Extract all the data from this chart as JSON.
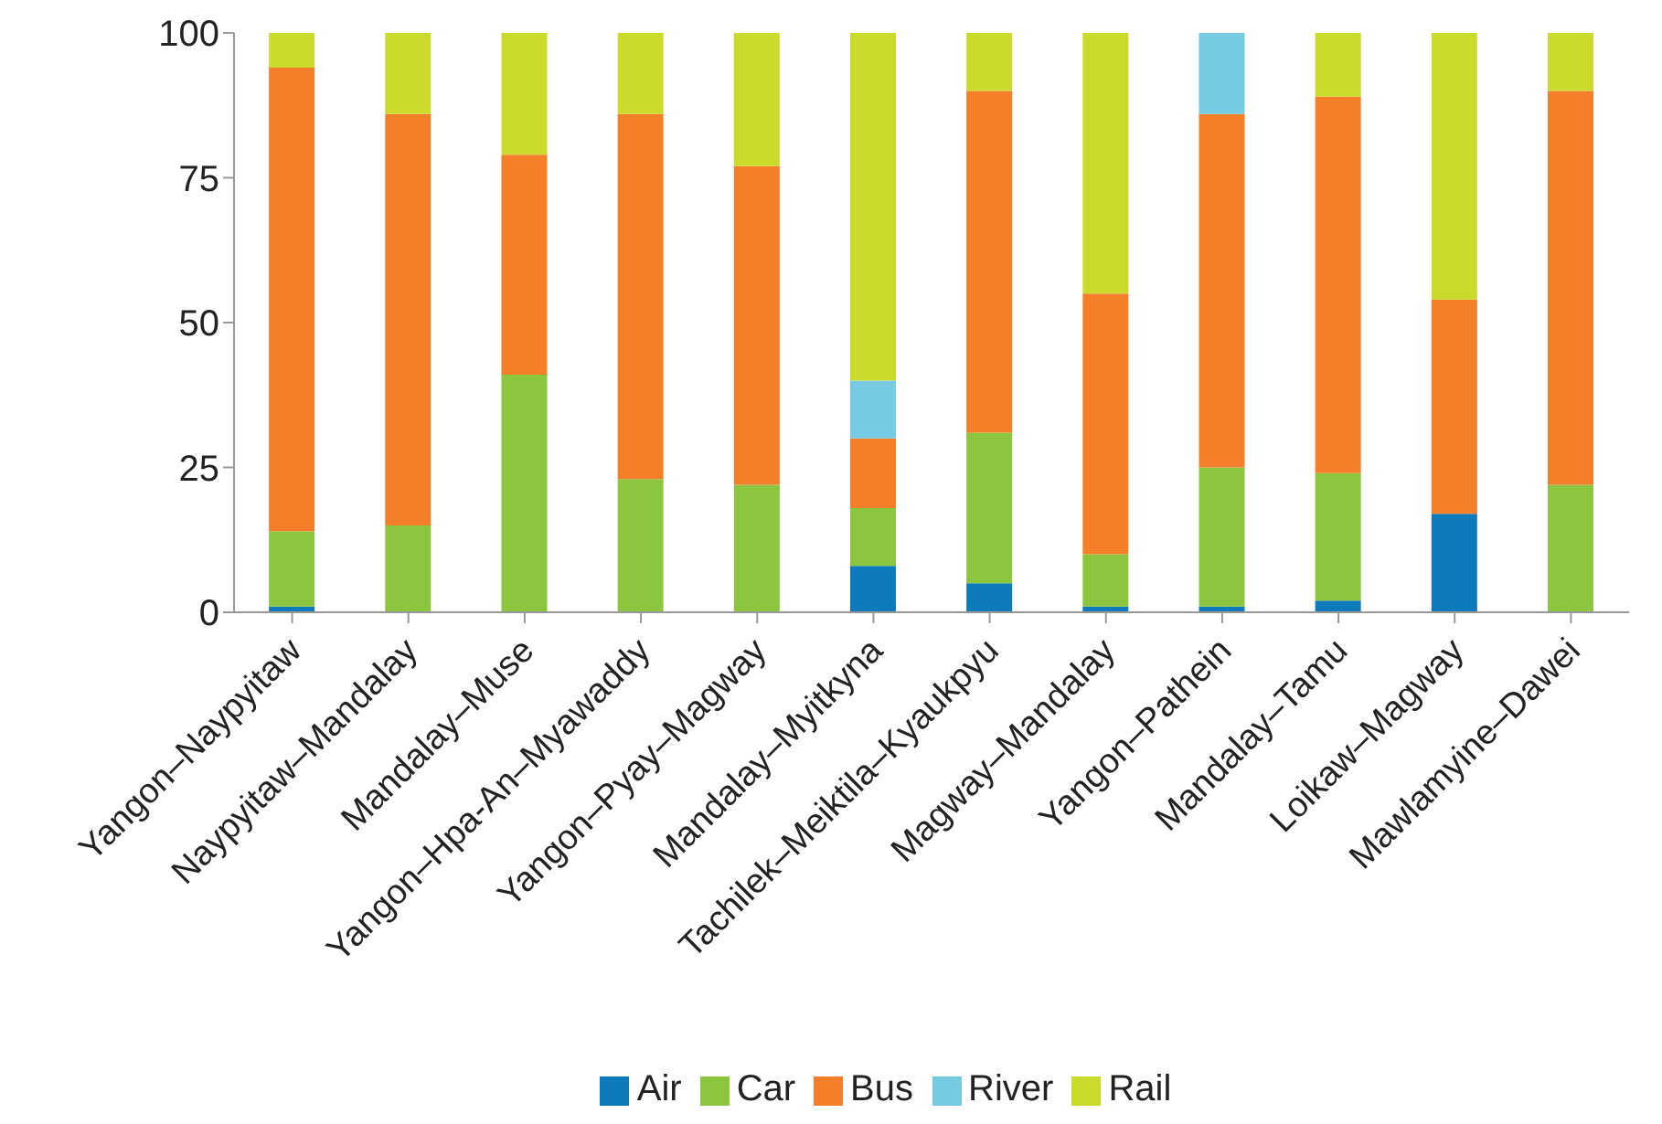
{
  "chart_data": {
    "type": "bar",
    "stacked": true,
    "categories": [
      "Yangon–Naypyitaw",
      "Naypyitaw–Mandalay",
      "Mandalay–Muse",
      "Yangon–Hpa-An–Myawaddy",
      "Yangon–Pyay–Magway",
      "Mandalay–Myitkyna",
      "Tachilek–Meiktila–Kyaukpyu",
      "Magway–Mandalay",
      "Yangon–Pathein",
      "Mandalay–Tamu",
      "Loikaw–Magway",
      "Mawlamyine–Dawei"
    ],
    "series": [
      {
        "name": "Air",
        "color": "#0d7bbb",
        "values": [
          1,
          0,
          0,
          0,
          0,
          8,
          5,
          1,
          1,
          2,
          17,
          0
        ]
      },
      {
        "name": "Car",
        "color": "#8cc63f",
        "values": [
          13,
          15,
          41,
          23,
          22,
          10,
          26,
          9,
          24,
          22,
          0,
          22
        ]
      },
      {
        "name": "Bus",
        "color": "#f47f28",
        "values": [
          80,
          71,
          38,
          63,
          55,
          12,
          59,
          45,
          61,
          65,
          37,
          68
        ]
      },
      {
        "name": "River",
        "color": "#76cbe3",
        "values": [
          0,
          0,
          0,
          0,
          0,
          10,
          0,
          0,
          14,
          0,
          0,
          0
        ]
      },
      {
        "name": "Rail",
        "color": "#cbdb2c",
        "values": [
          6,
          14,
          21,
          14,
          23,
          60,
          10,
          45,
          0,
          11,
          46,
          10
        ]
      }
    ],
    "ylim": [
      0,
      100
    ],
    "yticks": [
      0,
      25,
      50,
      75,
      100
    ],
    "grid": false,
    "legend": "bottom"
  }
}
